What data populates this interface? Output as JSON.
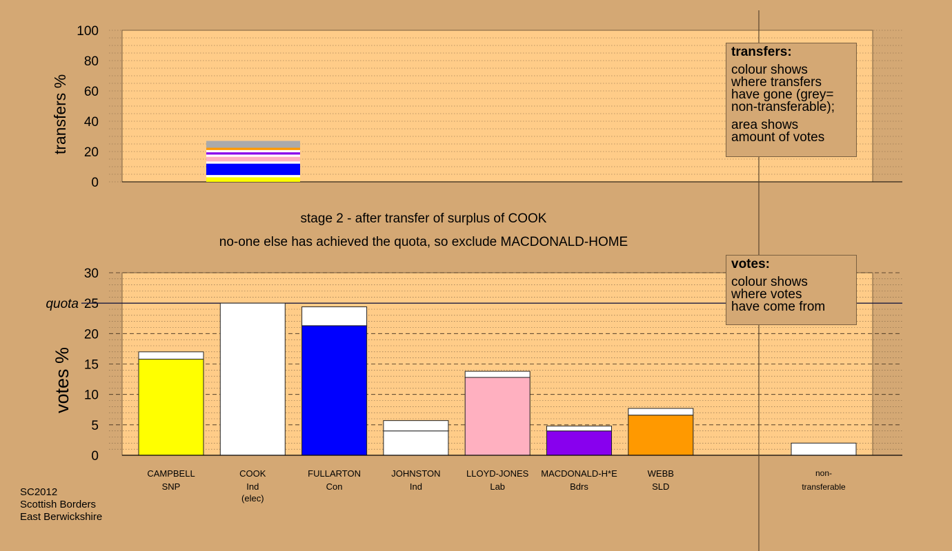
{
  "stage_line": "stage 2 - after transfer of surplus of COOK",
  "exclusion_line": "no-one else has achieved the quota, so exclude MACDONALD-HOME",
  "legend_transfers": {
    "title": "transfers:",
    "lines": [
      "colour shows",
      "where transfers",
      "have gone (grey=",
      "non-transferable);",
      "area shows",
      "amount of votes"
    ]
  },
  "legend_votes": {
    "title": "votes:",
    "lines": [
      "colour shows",
      "where votes",
      "have come from"
    ]
  },
  "source": [
    "SC2012",
    "Scottish Borders",
    "East Berwickshire"
  ],
  "chart_data": [
    {
      "type": "bar",
      "ylabel": "transfers %",
      "ylim": [
        0,
        100
      ],
      "yticks": [
        0,
        20,
        40,
        60,
        80,
        100
      ],
      "stack_for": "COOK",
      "series": [
        {
          "color": "#ffff00",
          "value": 3
        },
        {
          "color": "#ffffff",
          "value": 1.5
        },
        {
          "color": "#0000ff",
          "value": 7.5
        },
        {
          "color": "#ffffff",
          "value": 1.5
        },
        {
          "color": "#ffb0c0",
          "value": 3
        },
        {
          "color": "#ffffff",
          "value": 1.5
        },
        {
          "color": "#8800ee",
          "value": 1.5
        },
        {
          "color": "#ffffff",
          "value": 1.5
        },
        {
          "color": "#ff9900",
          "value": 1.5
        },
        {
          "color": "#aaaaaa",
          "value": 4.5
        }
      ]
    },
    {
      "type": "bar",
      "ylabel": "votes %",
      "ylim": [
        0,
        30
      ],
      "yticks": [
        0,
        5,
        10,
        15,
        20,
        25,
        30
      ],
      "quota": 25,
      "quota_label": "quota",
      "categories": [
        {
          "name": "CAMPBELL",
          "party": "SNP",
          "note": "",
          "color": "#ffff00",
          "first": 15.8,
          "added": 1.2
        },
        {
          "name": "COOK",
          "party": "Ind",
          "note": "(elec)",
          "color": "#ffffff",
          "first": 25.0,
          "added": 0
        },
        {
          "name": "FULLARTON",
          "party": "Con",
          "note": "",
          "color": "#0000ff",
          "first": 21.3,
          "added": 3.1
        },
        {
          "name": "JOHNSTON",
          "party": "Ind",
          "note": "",
          "color": "#ffffff",
          "first": 4.0,
          "added": 1.7
        },
        {
          "name": "LLOYD-JONES",
          "party": "Lab",
          "note": "",
          "color": "#ffb0c0",
          "first": 12.8,
          "added": 1.0
        },
        {
          "name": "MACDONALD-H*E",
          "party": "Bdrs",
          "note": "",
          "color": "#8800ee",
          "first": 4.0,
          "added": 0.8
        },
        {
          "name": "WEBB",
          "party": "SLD",
          "note": "",
          "color": "#ff9900",
          "first": 6.6,
          "added": 1.1
        }
      ],
      "non_transferable": {
        "label_lines": [
          "non-",
          "transferable"
        ],
        "value": 2.0,
        "color": "#ffffff"
      }
    }
  ]
}
